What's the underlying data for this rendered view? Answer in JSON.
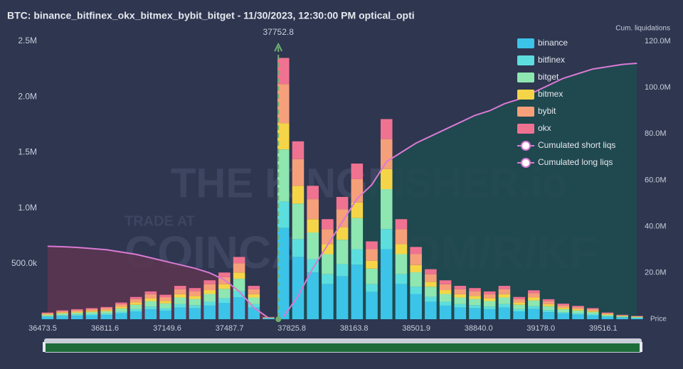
{
  "chart_data": {
    "type": "bar",
    "title": "BTC: binance_bitfinex_okx_bitmex_bybit_bitget - 11/30/2023, 12:30:00 PM optical_opti",
    "y2_label": "Cum. liquidations",
    "x_label": "Price",
    "watermark": [
      "THE KINGFISHER.io",
      "TRADE AT",
      "COINCALL.COM/R/KF"
    ],
    "marker": 37752.8,
    "x": [
      36500,
      36580,
      36660,
      36740,
      36820,
      36900,
      36980,
      37060,
      37140,
      37220,
      37300,
      37380,
      37460,
      37540,
      37620,
      37700,
      37780,
      37860,
      37940,
      38020,
      38100,
      38180,
      38260,
      38340,
      38420,
      38500,
      38580,
      38660,
      38740,
      38820,
      38900,
      38980,
      39060,
      39140,
      39220,
      39300,
      39380,
      39460,
      39540,
      39620,
      39700
    ],
    "xlim": [
      36473.5,
      39718
    ],
    "xticks": [
      36473.5,
      36811.6,
      37149.6,
      37487.7,
      37825.8,
      38163.8,
      38501.9,
      {
        "value": 38840,
        "label": "38840.0"
      },
      {
        "value": 39178,
        "label": "39178.0"
      },
      39516.1
    ],
    "ylim": [
      0,
      2500000
    ],
    "yticks": [
      {
        "value": 500000,
        "label": "500.0k"
      },
      {
        "value": 1000000,
        "label": "1.0M"
      },
      {
        "value": 1500000,
        "label": "1.5M"
      },
      {
        "value": 2000000,
        "label": "2.0M"
      },
      {
        "value": 2500000,
        "label": "2.5M"
      }
    ],
    "y2lim": [
      0,
      120000000
    ],
    "y2ticks": [
      {
        "value": 20000000,
        "label": "20.0M"
      },
      {
        "value": 40000000,
        "label": "40.0M"
      },
      {
        "value": 60000000,
        "label": "60.0M"
      },
      {
        "value": 80000000,
        "label": "80.0M"
      },
      {
        "value": 100000000,
        "label": "100.0M"
      },
      {
        "value": 120000000,
        "label": "120.0M"
      }
    ],
    "series": [
      {
        "name": "binance",
        "type": "bar",
        "color": "#3cc3e8",
        "values": [
          21000,
          28000,
          31000,
          35000,
          38000,
          52000,
          70000,
          88000,
          77000,
          105000,
          98000,
          122000,
          147000,
          196000,
          105000,
          7000,
          822000,
          560000,
          420000,
          315000,
          385000,
          490000,
          245000,
          630000,
          315000,
          227000,
          157000,
          122000,
          105000,
          98000,
          88000,
          105000,
          70000,
          91000,
          63000,
          49000,
          42000,
          35000,
          21000,
          14000,
          10000
        ]
      },
      {
        "name": "bitfinex",
        "type": "bar",
        "color": "#5cdede",
        "values": [
          6000,
          8000,
          9000,
          10000,
          11000,
          15000,
          20000,
          25000,
          22000,
          30000,
          28000,
          35000,
          42000,
          56000,
          30000,
          2000,
          235000,
          160000,
          120000,
          90000,
          110000,
          140000,
          70000,
          180000,
          90000,
          65000,
          45000,
          35000,
          30000,
          28000,
          25000,
          30000,
          20000,
          26000,
          18000,
          14000,
          12000,
          10000,
          6000,
          4000,
          3000
        ]
      },
      {
        "name": "bitget",
        "type": "bar",
        "color": "#8ee6b0",
        "values": [
          12000,
          16000,
          18000,
          20000,
          22000,
          30000,
          40000,
          50000,
          44000,
          60000,
          56000,
          70000,
          84000,
          112000,
          60000,
          4000,
          470000,
          320000,
          240000,
          180000,
          220000,
          280000,
          140000,
          360000,
          180000,
          130000,
          90000,
          70000,
          60000,
          56000,
          50000,
          60000,
          40000,
          52000,
          36000,
          28000,
          24000,
          20000,
          12000,
          8000,
          6000
        ]
      },
      {
        "name": "bitmex",
        "type": "bar",
        "color": "#f5d547",
        "values": [
          6000,
          8000,
          9000,
          10000,
          11000,
          15000,
          20000,
          25000,
          22000,
          30000,
          28000,
          35000,
          42000,
          56000,
          30000,
          2000,
          235000,
          160000,
          120000,
          90000,
          110000,
          140000,
          70000,
          180000,
          90000,
          65000,
          45000,
          35000,
          30000,
          28000,
          25000,
          30000,
          20000,
          26000,
          18000,
          14000,
          12000,
          10000,
          6000,
          4000,
          3000
        ]
      },
      {
        "name": "bybit",
        "type": "bar",
        "color": "#f5a07a",
        "values": [
          9000,
          12000,
          14000,
          15000,
          17000,
          23000,
          30000,
          37000,
          33000,
          45000,
          42000,
          53000,
          63000,
          84000,
          45000,
          3000,
          353000,
          240000,
          180000,
          135000,
          165000,
          210000,
          105000,
          270000,
          135000,
          98000,
          68000,
          53000,
          45000,
          42000,
          37000,
          45000,
          30000,
          39000,
          27000,
          21000,
          18000,
          15000,
          9000,
          6000,
          5000
        ]
      },
      {
        "name": "okx",
        "type": "bar",
        "color": "#f07291",
        "values": [
          6000,
          8000,
          9000,
          10000,
          11000,
          15000,
          20000,
          25000,
          22000,
          30000,
          28000,
          35000,
          42000,
          56000,
          30000,
          2000,
          235000,
          160000,
          120000,
          90000,
          110000,
          140000,
          70000,
          180000,
          90000,
          65000,
          45000,
          35000,
          30000,
          28000,
          25000,
          30000,
          20000,
          26000,
          18000,
          14000,
          12000,
          10000,
          6000,
          4000,
          3000
        ]
      },
      {
        "name": "Cumulated short liqs",
        "type": "line",
        "axis": "y2",
        "color": "#d97ad4",
        "area": "#1f4a4f",
        "values": [
          null,
          null,
          null,
          null,
          null,
          null,
          null,
          null,
          null,
          null,
          null,
          null,
          null,
          null,
          null,
          null,
          1000000,
          10000000,
          22000000,
          32000000,
          42000000,
          52000000,
          58000000,
          68000000,
          72000000,
          76000000,
          79000000,
          82000000,
          85000000,
          88000000,
          90000000,
          93000000,
          95000000,
          98000000,
          101000000,
          104000000,
          106000000,
          108000000,
          109000000,
          110000000,
          110500000
        ]
      },
      {
        "name": "Cumulated long liqs",
        "type": "line",
        "axis": "y2",
        "color": "#d97ad4",
        "area": "#5a3550",
        "values": [
          31500000,
          31300000,
          31000000,
          30500000,
          30000000,
          29000000,
          28000000,
          26500000,
          25000000,
          23500000,
          22000000,
          20000000,
          17000000,
          12000000,
          5000000,
          500000,
          null,
          null,
          null,
          null,
          null,
          null,
          null,
          null,
          null,
          null,
          null,
          null,
          null,
          null,
          null,
          null,
          null,
          null,
          null,
          null,
          null,
          null,
          null,
          null,
          null
        ]
      }
    ]
  }
}
